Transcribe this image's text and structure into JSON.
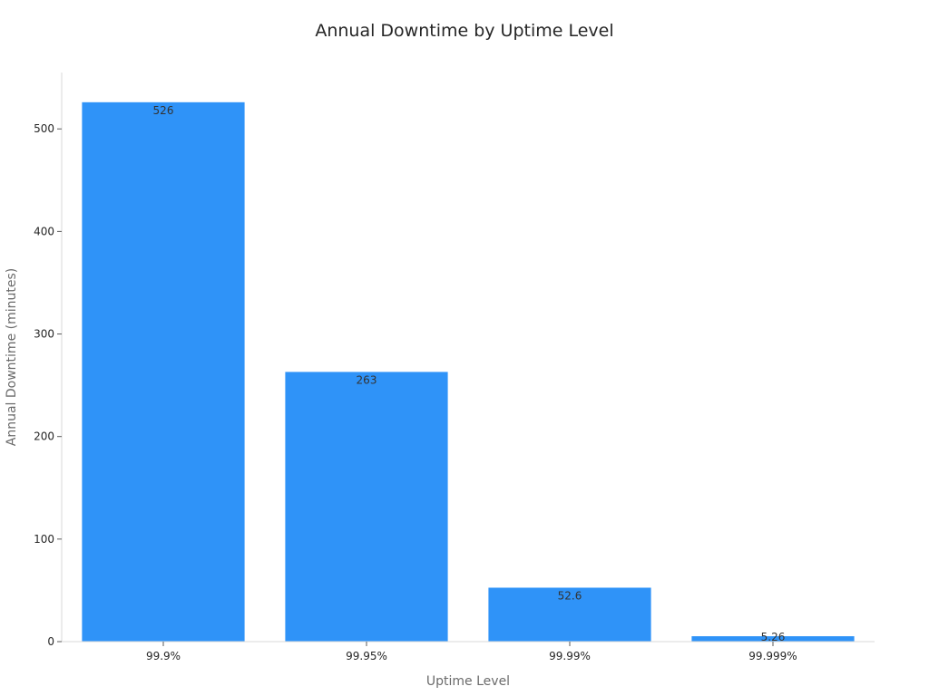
{
  "chart_data": {
    "type": "bar",
    "title": "Annual Downtime by Uptime Level",
    "xlabel": "Uptime Level",
    "ylabel": "Annual Downtime (minutes)",
    "categories": [
      "99.9%",
      "99.95%",
      "99.99%",
      "99.999%"
    ],
    "values": [
      526,
      263,
      52.6,
      5.26
    ],
    "data_labels": [
      "526",
      "263",
      "52.6",
      "5.26"
    ],
    "yticks": [
      0,
      100,
      200,
      300,
      400,
      500
    ],
    "ylim": [
      0,
      555
    ],
    "grid": false,
    "legend": "none",
    "bar_color": "#2f93f8"
  }
}
